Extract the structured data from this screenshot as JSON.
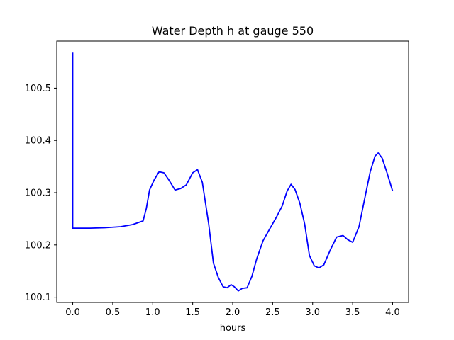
{
  "chart_data": {
    "type": "line",
    "title": "Water Depth h at gauge 550",
    "xlabel": "hours",
    "ylabel": "",
    "xlim": [
      -0.2,
      4.2
    ],
    "ylim": [
      100.09,
      100.59
    ],
    "grid": false,
    "x_ticks": [
      "0.0",
      "0.5",
      "1.0",
      "1.5",
      "2.0",
      "2.5",
      "3.0",
      "3.5",
      "4.0"
    ],
    "y_ticks": [
      "100.1",
      "100.2",
      "100.3",
      "100.4",
      "100.5"
    ],
    "series": [
      {
        "color": "#0000ff",
        "points": [
          [
            0.0,
            100.568
          ],
          [
            0.0,
            100.232
          ],
          [
            0.2,
            100.232
          ],
          [
            0.4,
            100.233
          ],
          [
            0.6,
            100.235
          ],
          [
            0.75,
            100.239
          ],
          [
            0.88,
            100.246
          ],
          [
            0.92,
            100.27
          ],
          [
            0.96,
            100.305
          ],
          [
            1.02,
            100.325
          ],
          [
            1.08,
            100.34
          ],
          [
            1.14,
            100.338
          ],
          [
            1.2,
            100.325
          ],
          [
            1.28,
            100.305
          ],
          [
            1.35,
            100.308
          ],
          [
            1.42,
            100.315
          ],
          [
            1.5,
            100.338
          ],
          [
            1.56,
            100.344
          ],
          [
            1.62,
            100.32
          ],
          [
            1.7,
            100.24
          ],
          [
            1.76,
            100.165
          ],
          [
            1.82,
            100.138
          ],
          [
            1.88,
            100.12
          ],
          [
            1.93,
            100.118
          ],
          [
            1.98,
            100.124
          ],
          [
            2.02,
            100.12
          ],
          [
            2.07,
            100.112
          ],
          [
            2.12,
            100.117
          ],
          [
            2.18,
            100.118
          ],
          [
            2.24,
            100.14
          ],
          [
            2.3,
            100.173
          ],
          [
            2.38,
            100.208
          ],
          [
            2.46,
            100.23
          ],
          [
            2.55,
            100.254
          ],
          [
            2.62,
            100.275
          ],
          [
            2.68,
            100.303
          ],
          [
            2.73,
            100.316
          ],
          [
            2.78,
            100.306
          ],
          [
            2.84,
            100.28
          ],
          [
            2.9,
            100.24
          ],
          [
            2.96,
            100.18
          ],
          [
            3.02,
            100.16
          ],
          [
            3.08,
            100.156
          ],
          [
            3.14,
            100.162
          ],
          [
            3.22,
            100.19
          ],
          [
            3.3,
            100.215
          ],
          [
            3.38,
            100.218
          ],
          [
            3.44,
            100.21
          ],
          [
            3.5,
            100.205
          ],
          [
            3.58,
            100.235
          ],
          [
            3.66,
            100.295
          ],
          [
            3.72,
            100.34
          ],
          [
            3.78,
            100.37
          ],
          [
            3.82,
            100.376
          ],
          [
            3.87,
            100.366
          ],
          [
            3.93,
            100.338
          ],
          [
            3.97,
            100.318
          ],
          [
            4.0,
            100.303
          ]
        ]
      }
    ]
  }
}
